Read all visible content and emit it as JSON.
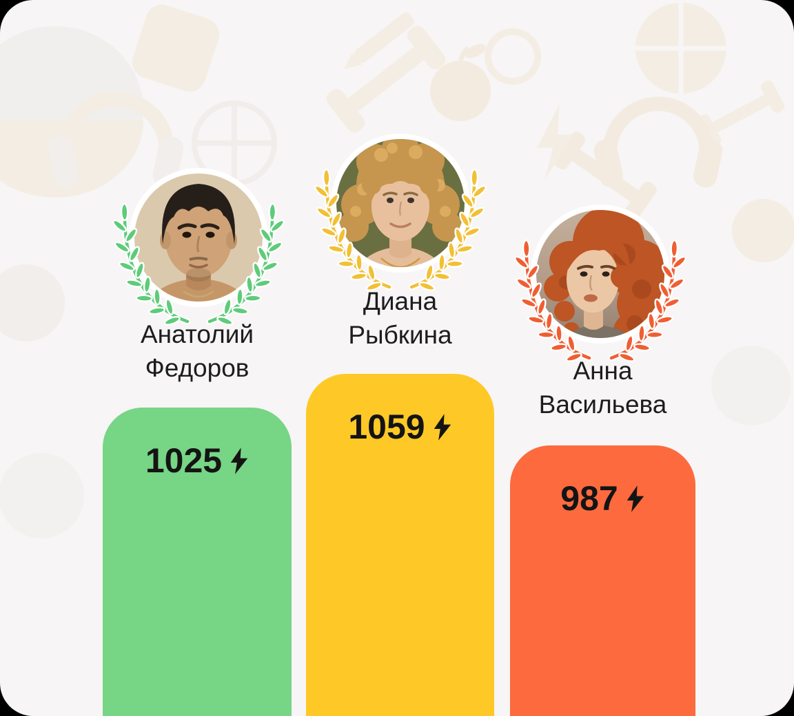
{
  "theme": {
    "page_background": "#f7f5f5",
    "name_text_color": "#1d1d1f",
    "score_text_color": "#141414",
    "pattern_cream_color": "#f2e8d8",
    "pattern_gray_color": "#edeae7"
  },
  "background_pattern_icons": [
    "dumbbell",
    "headphones",
    "basketball",
    "apple",
    "pencil",
    "clock",
    "lightning"
  ],
  "leaderboard": {
    "entries": [
      {
        "name_line1": "Анатолий",
        "name_line2": "Федоров",
        "score": "1025",
        "score_icon": "lightning-bolt",
        "bar_color": "#77d586",
        "wreath_color": "#5ecb79"
      },
      {
        "name_line1": "Диана",
        "name_line2": "Рыбкина",
        "score": "1059",
        "score_icon": "lightning-bolt",
        "bar_color": "#fec926",
        "wreath_color": "#f2bf35"
      },
      {
        "name_line1": "Анна",
        "name_line2": "Васильева",
        "score": "987",
        "score_icon": "lightning-bolt",
        "bar_color": "#fc6a3e",
        "wreath_color": "#ef5e33"
      }
    ]
  }
}
